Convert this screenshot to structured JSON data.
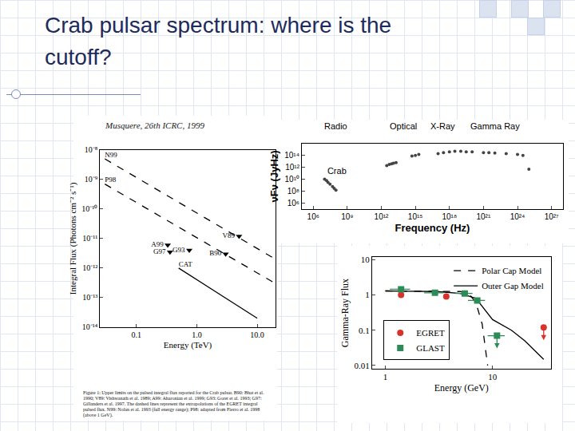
{
  "slide": {
    "title": "Crab pulsar spectrum: where is the cutoff?",
    "credit": "Musquere, 26th ICRC, 1999"
  },
  "chart_data": [
    {
      "type": "scatter",
      "log": true,
      "grid": false,
      "x_label": "Energy (TeV)",
      "y_label": "Integral Flux (Photons cm⁻² s⁻¹)",
      "xlim": [
        0.025,
        20
      ],
      "ylim": [
        1e-14,
        1e-08
      ],
      "xticks": [
        0.1,
        {
          "value": 1,
          "label": "1.0"
        },
        {
          "value": 10,
          "label": "10.0"
        }
      ],
      "yticks": [
        {
          "value": 1e-08,
          "label": "10⁻⁸"
        },
        {
          "value": 1e-09,
          "label": "10⁻⁹"
        },
        {
          "value": 1e-10,
          "label": "10⁻¹⁰"
        },
        {
          "value": 1e-11,
          "label": "10⁻¹¹"
        },
        {
          "value": 1e-12,
          "label": "10⁻¹²"
        },
        {
          "value": 1e-13,
          "label": "10⁻¹³"
        },
        {
          "value": 1e-14,
          "label": "10⁻¹⁴"
        }
      ],
      "caption": "Figure 1: Upper limits on the pulsed integral flux reported for the Crab pulsar. B90: Bhat et al. 1990; V89: Vishwanath et al. 1989; A99: Aharonian et al. 1999; G93: Goret et al. 1993; G97: Gillanders et al. 1997. The dashed lines represent the extrapolations of the EGRET integral pulsed flux. N99: Nolan et al. 1993 (full energy range); P98: adapted from Fierro et al. 1998 (above 1 GeV).",
      "series": [
        {
          "name": "N99",
          "type": "line",
          "line_style": "dashed",
          "color": "#000000",
          "x": [
            0.03,
            20
          ],
          "values": [
            5e-09,
            2e-12
          ]
        },
        {
          "name": "P98",
          "type": "line",
          "line_style": "dashed",
          "color": "#000000",
          "x": [
            0.03,
            20
          ],
          "values": [
            7e-10,
            3e-13
          ]
        },
        {
          "name": "CAT",
          "type": "line",
          "line_style": "solid",
          "color": "#000000",
          "x": [
            0.5,
            10
          ],
          "values": [
            1e-12,
            2e-14
          ]
        },
        {
          "type": "scatter",
          "marker": "triangle-down",
          "color": "#000000",
          "labels": [
            "A99",
            "G97",
            "G93",
            "B90",
            "V89"
          ],
          "x": [
            0.33,
            0.36,
            0.75,
            3,
            5
          ],
          "values": [
            6e-12,
            3.5e-12,
            4e-12,
            3e-12,
            1.2e-11
          ]
        }
      ]
    },
    {
      "type": "scatter",
      "log": true,
      "grid": false,
      "x_label": "Frequency (Hz)",
      "y_label": "νFν (JyHz)",
      "xlim": [
        100000.0,
        1e+28
      ],
      "ylim": [
        100000.0,
        1e+16
      ],
      "xticks": [
        {
          "value": 1000000.0,
          "label": "10⁶"
        },
        {
          "value": 1000000000.0,
          "label": "10⁹"
        },
        {
          "value": 1000000000000.0,
          "label": "10¹²"
        },
        {
          "value": 1000000000000000.0,
          "label": "10¹⁵"
        },
        {
          "value": 1e+18,
          "label": "10¹⁸"
        },
        {
          "value": 1e+21,
          "label": "10²¹"
        },
        {
          "value": 1e+24,
          "label": "10²⁴"
        },
        {
          "value": 1e+27,
          "label": "10²⁷"
        }
      ],
      "yticks": [
        {
          "value": 1000000.0,
          "label": "10⁶"
        },
        {
          "value": 100000000.0,
          "label": "10⁸"
        },
        {
          "value": 10000000000.0,
          "label": "10¹⁰"
        },
        {
          "value": 1000000000000.0,
          "label": "10¹²"
        },
        {
          "value": 100000000000000.0,
          "label": "10¹⁴"
        }
      ],
      "bands": [
        "Radio",
        "Optical",
        "X-Ray",
        "Gamma Ray"
      ],
      "series": [
        {
          "name": "Crab",
          "type": "scatter",
          "marker": "circle",
          "color": "#444444",
          "x": [
            10000000.0,
            15000000.0,
            20000000.0,
            30000000.0,
            50000000.0,
            70000000.0,
            100000000.0,
            3000000000000.0,
            5000000000000.0,
            8000000000000.0,
            12000000000000.0,
            20000000000000.0,
            500000000000000.0,
            1000000000000000.0,
            2000000000000000.0,
            1e+17,
            3e+17,
            1e+18,
            3e+18,
            1e+19,
            3e+19,
            1e+20,
            1e+21,
            3e+21,
            1e+22,
            1e+23,
            1e+24,
            3e+24,
            1e+25
          ],
          "values": [
            10000000000.0,
            6000000000.0,
            3000000000.0,
            1500000000.0,
            600000000.0,
            300000000.0,
            150000000.0,
            2000000000000.0,
            3000000000000.0,
            4000000000000.0,
            5000000000000.0,
            6000000000000.0,
            80000000000000.0,
            100000000000000.0,
            150000000000000.0,
            200000000000000.0,
            300000000000000.0,
            400000000000000.0,
            500000000000000.0,
            500000000000000.0,
            400000000000000.0,
            400000000000000.0,
            300000000000000.0,
            300000000000000.0,
            250000000000000.0,
            200000000000000.0,
            150000000000000.0,
            100000000000000.0,
            500000000000.0
          ]
        }
      ]
    },
    {
      "type": "scatter",
      "log": true,
      "grid": false,
      "legend": "upper right",
      "x_label": "Energy (GeV)",
      "y_label": "Gamma-Ray Flux",
      "xlim": [
        0.75,
        35
      ],
      "ylim": [
        0.008,
        12
      ],
      "xticks": [
        1,
        10
      ],
      "yticks": [
        0.01,
        0.1,
        1,
        10
      ],
      "series": [
        {
          "name": "Polar Cap Model",
          "type": "line",
          "line_style": "dashed",
          "color": "#000000",
          "x": [
            1,
            2,
            3,
            4,
            5,
            6,
            7,
            8,
            9
          ],
          "values": [
            1.3,
            1.3,
            1.3,
            1.3,
            1.25,
            1.1,
            0.6,
            0.15,
            0.01
          ]
        },
        {
          "name": "Outer Gap Model",
          "type": "line",
          "line_style": "solid",
          "color": "#000000",
          "x": [
            1,
            2,
            3,
            5,
            7,
            10,
            15,
            20,
            30
          ],
          "values": [
            1.3,
            1.3,
            1.25,
            1.1,
            0.8,
            0.2,
            0.1,
            0.05,
            0.015
          ]
        },
        {
          "name": "EGRET",
          "type": "scatter",
          "marker": "circle",
          "color": "#d9322b",
          "x": [
            1.4,
            3.7,
            30
          ],
          "values": [
            1.0,
            0.9,
            0.12
          ],
          "upper_limit": [
            false,
            false,
            true
          ]
        },
        {
          "name": "GLAST",
          "type": "scatter",
          "marker": "square",
          "color": "#2e8b57",
          "x": [
            1.4,
            2.9,
            5.5,
            7.2,
            11
          ],
          "values": [
            1.45,
            1.15,
            1.1,
            0.7,
            0.07
          ],
          "x_error": [
            0.3,
            0.6,
            1.0,
            1.3,
            2
          ],
          "upper_limit": [
            false,
            false,
            false,
            false,
            true
          ]
        }
      ]
    }
  ]
}
